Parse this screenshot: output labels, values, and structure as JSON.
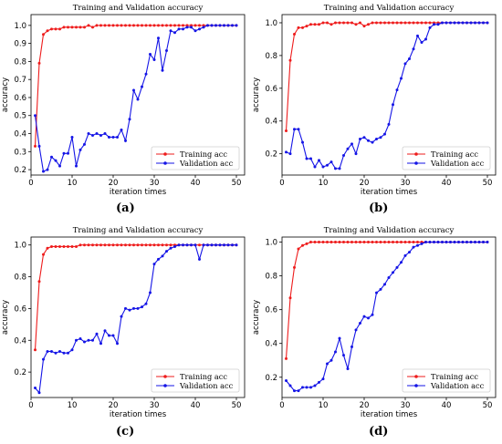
{
  "panels": [
    {
      "label": "(a)"
    },
    {
      "label": "(b)"
    },
    {
      "label": "(c)"
    },
    {
      "label": "(d)"
    }
  ],
  "chart_data": [
    {
      "type": "line",
      "title": "Training and Validation accuracy",
      "xlabel": "iteration times",
      "ylabel": "accuracy",
      "xlim": [
        0,
        52
      ],
      "ylim": [
        0.17,
        1.06
      ],
      "xticks": [
        0,
        10,
        20,
        30,
        40,
        50
      ],
      "yticks": [
        0.2,
        0.3,
        0.4,
        0.5,
        0.6,
        0.7,
        0.8,
        0.9,
        1.0
      ],
      "ytick_labels": [
        "0.2",
        "0.3",
        "0.4",
        "0.5",
        "0.6",
        "0.7",
        "0.8",
        "0.9",
        "1.0"
      ],
      "legend": "bottom-right",
      "x": [
        1,
        2,
        3,
        4,
        5,
        6,
        7,
        8,
        9,
        10,
        11,
        12,
        13,
        14,
        15,
        16,
        17,
        18,
        19,
        20,
        21,
        22,
        23,
        24,
        25,
        26,
        27,
        28,
        29,
        30,
        31,
        32,
        33,
        34,
        35,
        36,
        37,
        38,
        39,
        40,
        41,
        42,
        43,
        44,
        45,
        46,
        47,
        48,
        49,
        50
      ],
      "series": [
        {
          "name": "Training acc",
          "color": "#ee1c1c",
          "values": [
            0.33,
            0.79,
            0.95,
            0.97,
            0.98,
            0.98,
            0.98,
            0.99,
            0.99,
            0.99,
            0.99,
            0.99,
            0.99,
            1.0,
            0.99,
            1.0,
            1.0,
            1.0,
            1.0,
            1.0,
            1.0,
            1.0,
            1.0,
            1.0,
            1.0,
            1.0,
            1.0,
            1.0,
            1.0,
            1.0,
            1.0,
            1.0,
            1.0,
            1.0,
            1.0,
            1.0,
            1.0,
            1.0,
            1.0,
            1.0,
            1.0,
            1.0,
            1.0,
            1.0,
            1.0,
            1.0,
            1.0,
            1.0,
            1.0,
            1.0
          ]
        },
        {
          "name": "Validation acc",
          "color": "#1515e6",
          "values": [
            0.5,
            0.33,
            0.19,
            0.2,
            0.27,
            0.25,
            0.22,
            0.29,
            0.29,
            0.38,
            0.22,
            0.31,
            0.34,
            0.4,
            0.39,
            0.4,
            0.39,
            0.4,
            0.38,
            0.38,
            0.38,
            0.42,
            0.36,
            0.48,
            0.64,
            0.59,
            0.66,
            0.73,
            0.84,
            0.81,
            0.93,
            0.75,
            0.86,
            0.97,
            0.96,
            0.98,
            0.98,
            0.99,
            0.99,
            0.97,
            0.98,
            0.99,
            1.0,
            1.0,
            1.0,
            1.0,
            1.0,
            1.0,
            1.0,
            1.0
          ]
        }
      ]
    },
    {
      "type": "line",
      "title": "Training and Validation accuracy",
      "xlabel": "iteration times",
      "ylabel": "accuracy",
      "xlim": [
        0,
        52
      ],
      "ylim": [
        0.07,
        1.05
      ],
      "xticks": [
        0,
        10,
        20,
        30,
        40,
        50
      ],
      "yticks": [
        0.2,
        0.4,
        0.6,
        0.8,
        1.0
      ],
      "ytick_labels": [
        "0.2",
        "0.4",
        "0.6",
        "0.8",
        "1.0"
      ],
      "legend": "bottom-right",
      "x": [
        1,
        2,
        3,
        4,
        5,
        6,
        7,
        8,
        9,
        10,
        11,
        12,
        13,
        14,
        15,
        16,
        17,
        18,
        19,
        20,
        21,
        22,
        23,
        24,
        25,
        26,
        27,
        28,
        29,
        30,
        31,
        32,
        33,
        34,
        35,
        36,
        37,
        38,
        39,
        40,
        41,
        42,
        43,
        44,
        45,
        46,
        47,
        48,
        49,
        50
      ],
      "series": [
        {
          "name": "Training acc",
          "color": "#ee1c1c",
          "values": [
            0.34,
            0.77,
            0.93,
            0.97,
            0.97,
            0.98,
            0.99,
            0.99,
            0.99,
            1.0,
            1.0,
            0.99,
            1.0,
            1.0,
            1.0,
            1.0,
            1.0,
            0.99,
            1.0,
            0.98,
            0.99,
            1.0,
            1.0,
            1.0,
            1.0,
            1.0,
            1.0,
            1.0,
            1.0,
            1.0,
            1.0,
            1.0,
            1.0,
            1.0,
            1.0,
            1.0,
            1.0,
            1.0,
            1.0,
            1.0,
            1.0,
            1.0,
            1.0,
            1.0,
            1.0,
            1.0,
            1.0,
            1.0,
            1.0,
            1.0
          ]
        },
        {
          "name": "Validation acc",
          "color": "#1515e6",
          "values": [
            0.21,
            0.2,
            0.35,
            0.35,
            0.27,
            0.17,
            0.17,
            0.12,
            0.16,
            0.12,
            0.13,
            0.15,
            0.11,
            0.11,
            0.19,
            0.23,
            0.26,
            0.2,
            0.29,
            0.3,
            0.28,
            0.27,
            0.29,
            0.3,
            0.32,
            0.38,
            0.5,
            0.59,
            0.66,
            0.75,
            0.78,
            0.84,
            0.92,
            0.88,
            0.9,
            0.97,
            0.99,
            0.99,
            1.0,
            1.0,
            1.0,
            1.0,
            1.0,
            1.0,
            1.0,
            1.0,
            1.0,
            1.0,
            1.0,
            1.0
          ]
        }
      ]
    },
    {
      "type": "line",
      "title": "Training and Validation accuracy",
      "xlabel": "iteration times",
      "ylabel": "accuracy",
      "xlim": [
        0,
        52
      ],
      "ylim": [
        0.04,
        1.05
      ],
      "xticks": [
        0,
        10,
        20,
        30,
        40,
        50
      ],
      "yticks": [
        0.2,
        0.4,
        0.6,
        0.8,
        1.0
      ],
      "ytick_labels": [
        "0.2",
        "0.4",
        "0.6",
        "0.8",
        "1.0"
      ],
      "legend": "bottom-right",
      "x": [
        1,
        2,
        3,
        4,
        5,
        6,
        7,
        8,
        9,
        10,
        11,
        12,
        13,
        14,
        15,
        16,
        17,
        18,
        19,
        20,
        21,
        22,
        23,
        24,
        25,
        26,
        27,
        28,
        29,
        30,
        31,
        32,
        33,
        34,
        35,
        36,
        37,
        38,
        39,
        40,
        41,
        42,
        43,
        44,
        45,
        46,
        47,
        48,
        49,
        50
      ],
      "series": [
        {
          "name": "Training acc",
          "color": "#ee1c1c",
          "values": [
            0.34,
            0.77,
            0.94,
            0.98,
            0.99,
            0.99,
            0.99,
            0.99,
            0.99,
            0.99,
            0.99,
            1.0,
            1.0,
            1.0,
            1.0,
            1.0,
            1.0,
            1.0,
            1.0,
            1.0,
            1.0,
            1.0,
            1.0,
            1.0,
            1.0,
            1.0,
            1.0,
            1.0,
            1.0,
            1.0,
            1.0,
            1.0,
            1.0,
            1.0,
            1.0,
            1.0,
            1.0,
            1.0,
            1.0,
            1.0,
            1.0,
            1.0,
            1.0,
            1.0,
            1.0,
            1.0,
            1.0,
            1.0,
            1.0,
            1.0
          ]
        },
        {
          "name": "Validation acc",
          "color": "#1515e6",
          "values": [
            0.1,
            0.07,
            0.28,
            0.33,
            0.33,
            0.32,
            0.33,
            0.32,
            0.32,
            0.34,
            0.4,
            0.41,
            0.39,
            0.4,
            0.4,
            0.44,
            0.38,
            0.46,
            0.43,
            0.43,
            0.38,
            0.55,
            0.6,
            0.59,
            0.6,
            0.6,
            0.61,
            0.63,
            0.7,
            0.88,
            0.91,
            0.93,
            0.96,
            0.98,
            0.99,
            1.0,
            1.0,
            1.0,
            1.0,
            1.0,
            0.91,
            1.0,
            1.0,
            1.0,
            1.0,
            1.0,
            1.0,
            1.0,
            1.0,
            1.0
          ]
        }
      ]
    },
    {
      "type": "line",
      "title": "Training and Validation accuracy",
      "xlabel": "iteration times",
      "ylabel": "accuracy",
      "xlim": [
        0,
        52
      ],
      "ylim": [
        0.08,
        1.03
      ],
      "xticks": [
        0,
        10,
        20,
        30,
        40,
        50
      ],
      "yticks": [
        0.2,
        0.4,
        0.6,
        0.8,
        1.0
      ],
      "ytick_labels": [
        "0.2",
        "0.4",
        "0.6",
        "0.8",
        "1.0"
      ],
      "legend": "bottom-right",
      "x": [
        1,
        2,
        3,
        4,
        5,
        6,
        7,
        8,
        9,
        10,
        11,
        12,
        13,
        14,
        15,
        16,
        17,
        18,
        19,
        20,
        21,
        22,
        23,
        24,
        25,
        26,
        27,
        28,
        29,
        30,
        31,
        32,
        33,
        34,
        35,
        36,
        37,
        38,
        39,
        40,
        41,
        42,
        43,
        44,
        45,
        46,
        47,
        48,
        49,
        50
      ],
      "series": [
        {
          "name": "Training acc",
          "color": "#ee1c1c",
          "values": [
            0.31,
            0.67,
            0.85,
            0.96,
            0.98,
            0.99,
            1.0,
            1.0,
            1.0,
            1.0,
            1.0,
            1.0,
            1.0,
            1.0,
            1.0,
            1.0,
            1.0,
            1.0,
            1.0,
            1.0,
            1.0,
            1.0,
            1.0,
            1.0,
            1.0,
            1.0,
            1.0,
            1.0,
            1.0,
            1.0,
            1.0,
            1.0,
            1.0,
            1.0,
            1.0,
            1.0,
            1.0,
            1.0,
            1.0,
            1.0,
            1.0,
            1.0,
            1.0,
            1.0,
            1.0,
            1.0,
            1.0,
            1.0,
            1.0,
            1.0
          ]
        },
        {
          "name": "Validation acc",
          "color": "#1515e6",
          "values": [
            0.18,
            0.15,
            0.12,
            0.12,
            0.14,
            0.14,
            0.14,
            0.15,
            0.17,
            0.19,
            0.28,
            0.3,
            0.35,
            0.43,
            0.33,
            0.25,
            0.38,
            0.48,
            0.52,
            0.56,
            0.55,
            0.57,
            0.7,
            0.72,
            0.75,
            0.79,
            0.82,
            0.85,
            0.88,
            0.92,
            0.94,
            0.97,
            0.98,
            0.99,
            1.0,
            1.0,
            1.0,
            1.0,
            1.0,
            1.0,
            1.0,
            1.0,
            1.0,
            1.0,
            1.0,
            1.0,
            1.0,
            1.0,
            1.0,
            1.0
          ]
        }
      ]
    }
  ]
}
